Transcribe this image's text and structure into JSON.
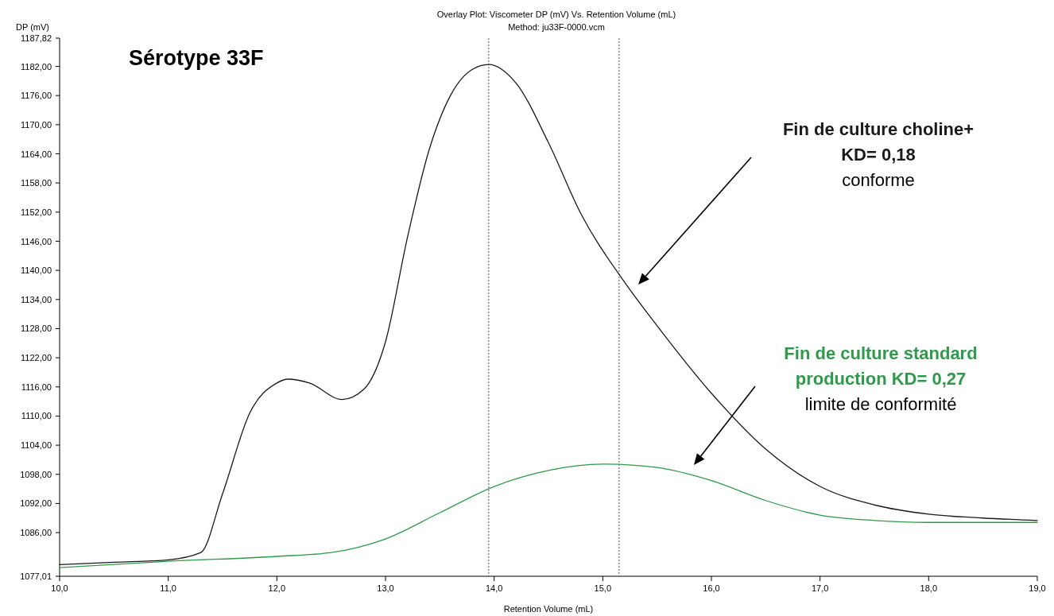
{
  "chart_data": {
    "type": "line",
    "title": "Overlay Plot: Viscometer DP (mV) Vs. Retention Volume (mL)",
    "subtitle": "Method: ju33F-0000.vcm",
    "xlabel": "Retention Volume (mL)",
    "ylabel": "DP (mV)",
    "xlim": [
      10,
      19
    ],
    "xticks": [
      {
        "value": 10,
        "label": "10,0"
      },
      {
        "value": 11,
        "label": "11,0"
      },
      {
        "value": 12,
        "label": "12,0"
      },
      {
        "value": 13,
        "label": "13,0"
      },
      {
        "value": 14,
        "label": "14,0"
      },
      {
        "value": 15,
        "label": "15,0"
      },
      {
        "value": 16,
        "label": "16,0"
      },
      {
        "value": 17,
        "label": "17,0"
      },
      {
        "value": 18,
        "label": "18,0"
      },
      {
        "value": 19,
        "label": "19,0"
      }
    ],
    "ylim": [
      1077.01,
      1187.82
    ],
    "yticks": [
      {
        "value": 1077.01,
        "label": "1077,01"
      },
      {
        "value": 1086,
        "label": "1086,00"
      },
      {
        "value": 1092,
        "label": "1092,00"
      },
      {
        "value": 1098,
        "label": "1098,00"
      },
      {
        "value": 1104,
        "label": "1104,00"
      },
      {
        "value": 1110,
        "label": "1110,00"
      },
      {
        "value": 1116,
        "label": "1116,00"
      },
      {
        "value": 1122,
        "label": "1122,00"
      },
      {
        "value": 1128,
        "label": "1128,00"
      },
      {
        "value": 1134,
        "label": "1134,00"
      },
      {
        "value": 1140,
        "label": "1140,00"
      },
      {
        "value": 1146,
        "label": "1146,00"
      },
      {
        "value": 1152,
        "label": "1152,00"
      },
      {
        "value": 1158,
        "label": "1158,00"
      },
      {
        "value": 1164,
        "label": "1164,00"
      },
      {
        "value": 1170,
        "label": "1170,00"
      },
      {
        "value": 1176,
        "label": "1176,00"
      },
      {
        "value": 1182,
        "label": "1182,00"
      },
      {
        "value": 1187.82,
        "label": "1187,82"
      }
    ],
    "grid": false,
    "marker": "none",
    "line_style": "solid",
    "series": [
      {
        "color": "#1a1a1a",
        "x": [
          10,
          10.5,
          11,
          11.3,
          11.5,
          11.75,
          12,
          12.1,
          12.3,
          12.6,
          12.8,
          13,
          13.2,
          13.4,
          13.6,
          13.8,
          13.95,
          14.2,
          14.5,
          14.8,
          15.2,
          15.5,
          16,
          16.5,
          17,
          17.5,
          18,
          18.5,
          19
        ],
        "values": [
          1079.4,
          1079.9,
          1080.4,
          1081.9,
          1094,
          1110.6,
          1116.8,
          1117.6,
          1116.8,
          1113.4,
          1115.5,
          1125.3,
          1146.6,
          1164.7,
          1176.1,
          1181.4,
          1182.4,
          1178.6,
          1166.3,
          1151.6,
          1137.6,
          1128.6,
          1114.7,
          1103.2,
          1095.5,
          1091.7,
          1089.8,
          1089,
          1088.5
        ]
      },
      {
        "color": "#2e9a4a",
        "x": [
          10,
          11,
          12,
          12.5,
          13,
          13.5,
          14,
          14.5,
          15,
          15.5,
          16,
          16.5,
          17,
          17.5,
          18,
          19
        ],
        "values": [
          1078.8,
          1080.1,
          1081.1,
          1081.9,
          1084.7,
          1090.1,
          1095.5,
          1098.8,
          1100.1,
          1099.4,
          1096.7,
          1092.6,
          1089.6,
          1088.5,
          1088.1,
          1088.1
        ]
      }
    ],
    "ref_lines": [
      {
        "axis": "x",
        "value": 13.95,
        "line_style": "dotted",
        "color": "#555555"
      },
      {
        "axis": "x",
        "value": 15.15,
        "line_style": "dotted",
        "color": "#555555"
      }
    ],
    "annotations": [
      "Sérotype 33F",
      "Fin de culture choline+\nKD= 0,18\nconforme",
      "Fin de culture standard\nproduction KD= 0,27\nlimite de conformité"
    ]
  }
}
